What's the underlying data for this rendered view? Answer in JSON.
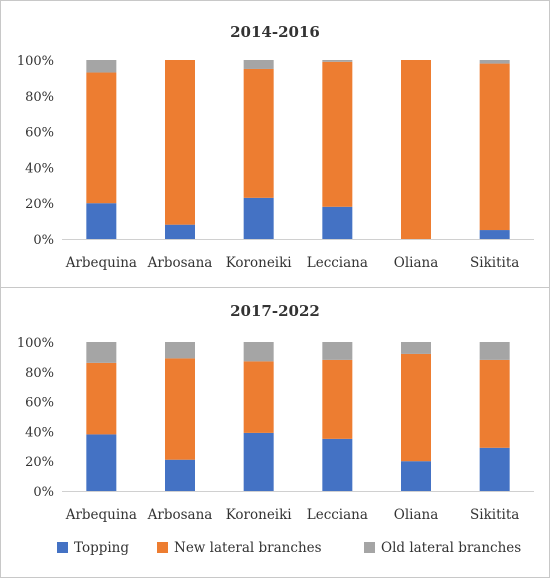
{
  "chart_data": [
    {
      "type": "bar",
      "stacked": true,
      "percent": true,
      "title": "2014-2016",
      "categories": [
        "Arbequina",
        "Arbosana",
        "Koroneiki",
        "Lecciana",
        "Oliana",
        "Sikitita"
      ],
      "series": [
        {
          "name": "Topping",
          "values": [
            20,
            8,
            23,
            18,
            0,
            5
          ]
        },
        {
          "name": "New lateral branches",
          "values": [
            73,
            92,
            72,
            81,
            100,
            93
          ]
        },
        {
          "name": "Old lateral branches",
          "values": [
            7,
            0,
            5,
            1,
            0,
            2
          ]
        }
      ],
      "ylim": [
        0,
        100
      ],
      "yticks": [
        "0%",
        "20%",
        "40%",
        "60%",
        "80%",
        "100%"
      ],
      "xlabel": "",
      "ylabel": "",
      "grid": false
    },
    {
      "type": "bar",
      "stacked": true,
      "percent": true,
      "title": "2017-2022",
      "categories": [
        "Arbequina",
        "Arbosana",
        "Koroneiki",
        "Lecciana",
        "Oliana",
        "Sikitita"
      ],
      "series": [
        {
          "name": "Topping",
          "values": [
            38,
            21,
            39,
            35,
            20,
            29
          ]
        },
        {
          "name": "New lateral branches",
          "values": [
            48,
            68,
            48,
            53,
            72,
            59
          ]
        },
        {
          "name": "Old lateral branches",
          "values": [
            14,
            11,
            13,
            12,
            8,
            12
          ]
        }
      ],
      "ylim": [
        0,
        100
      ],
      "yticks": [
        "0%",
        "20%",
        "40%",
        "60%",
        "80%",
        "100%"
      ],
      "xlabel": "",
      "ylabel": "",
      "grid": false
    }
  ],
  "legend": {
    "placement": "bottom",
    "items": [
      {
        "label": "Topping",
        "color": "#4472c4"
      },
      {
        "label": "New lateral branches",
        "color": "#ed7d31"
      },
      {
        "label": "Old lateral branches",
        "color": "#a5a5a5"
      }
    ]
  },
  "colors": {
    "Topping": "#4472c4",
    "New lateral branches": "#ed7d31",
    "Old lateral branches": "#a5a5a5"
  }
}
